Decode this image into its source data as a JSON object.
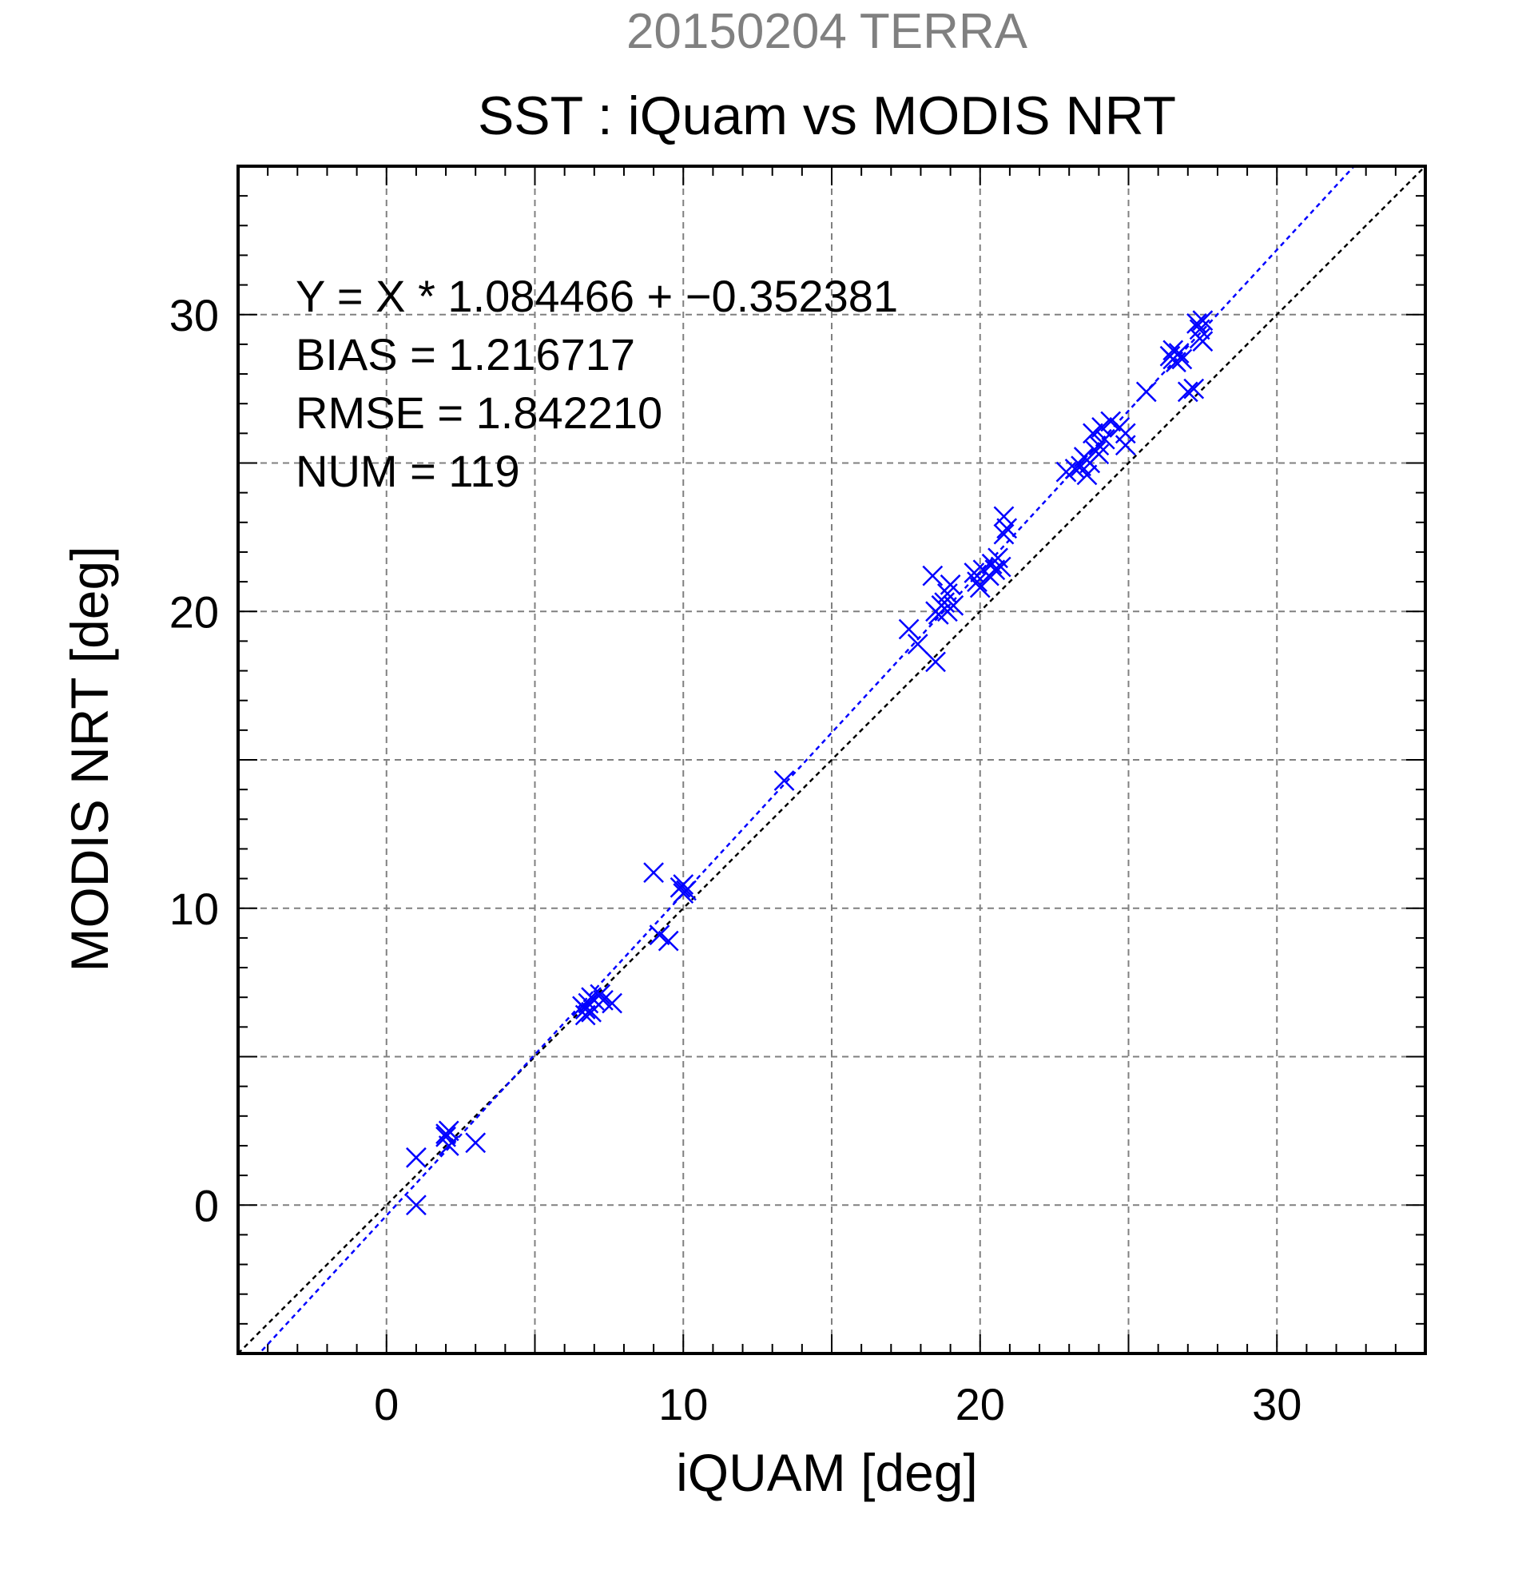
{
  "chart_data": {
    "type": "scatter",
    "title_top": "20150204 TERRA",
    "title": "SST : iQuam vs MODIS NRT",
    "xlabel": "iQUAM [deg]",
    "ylabel": "MODIS NRT [deg]",
    "xlim": [
      -5,
      35
    ],
    "ylim": [
      -5,
      35
    ],
    "xticks": [
      0,
      10,
      20,
      30
    ],
    "yticks": [
      0,
      10,
      20,
      30
    ],
    "grid": true,
    "stats": {
      "fit": "Y = X * 1.084466 + −0.352381",
      "bias": "BIAS = 1.216717",
      "rmse": "RMSE = 1.842210",
      "num": "NUM = 119"
    },
    "fit_line": {
      "slope": 1.084466,
      "intercept": -0.352381,
      "color": "#0000ff"
    },
    "identity_line": {
      "color": "#000000"
    },
    "marker_color": "#0000ff",
    "points": [
      [
        1.0,
        1.6
      ],
      [
        1.0,
        0.0
      ],
      [
        2.0,
        2.4
      ],
      [
        2.1,
        2.5
      ],
      [
        2.0,
        2.3
      ],
      [
        2.1,
        2.0
      ],
      [
        3.0,
        2.1
      ],
      [
        6.6,
        6.7
      ],
      [
        6.7,
        6.6
      ],
      [
        6.8,
        6.8
      ],
      [
        6.9,
        7.0
      ],
      [
        6.7,
        6.4
      ],
      [
        6.9,
        6.5
      ],
      [
        7.0,
        6.9
      ],
      [
        7.2,
        7.1
      ],
      [
        7.3,
        6.9
      ],
      [
        7.6,
        6.8
      ],
      [
        9.0,
        11.2
      ],
      [
        9.2,
        9.1
      ],
      [
        9.5,
        8.9
      ],
      [
        9.9,
        10.7
      ],
      [
        10.0,
        10.5
      ],
      [
        10.0,
        10.8
      ],
      [
        10.1,
        10.6
      ],
      [
        13.4,
        14.3
      ],
      [
        17.6,
        19.4
      ],
      [
        17.9,
        18.9
      ],
      [
        18.5,
        18.3
      ],
      [
        18.4,
        21.2
      ],
      [
        18.5,
        20.0
      ],
      [
        18.7,
        20.2
      ],
      [
        18.6,
        19.9
      ],
      [
        18.8,
        20.3
      ],
      [
        18.9,
        20.6
      ],
      [
        19.0,
        20.9
      ],
      [
        19.1,
        20.2
      ],
      [
        18.9,
        20.0
      ],
      [
        19.8,
        21.3
      ],
      [
        19.9,
        21.0
      ],
      [
        20.0,
        20.8
      ],
      [
        20.1,
        21.4
      ],
      [
        20.3,
        21.2
      ],
      [
        20.4,
        21.6
      ],
      [
        20.6,
        21.8
      ],
      [
        20.5,
        21.4
      ],
      [
        20.7,
        21.5
      ],
      [
        20.8,
        22.6
      ],
      [
        20.9,
        22.8
      ],
      [
        20.8,
        23.2
      ],
      [
        22.9,
        24.7
      ],
      [
        23.2,
        24.8
      ],
      [
        23.4,
        24.9
      ],
      [
        23.5,
        25.2
      ],
      [
        23.7,
        25.0
      ],
      [
        23.6,
        24.6
      ],
      [
        23.9,
        25.4
      ],
      [
        23.8,
        26.0
      ],
      [
        24.0,
        25.6
      ],
      [
        24.1,
        26.2
      ],
      [
        24.2,
        25.8
      ],
      [
        24.0,
        25.3
      ],
      [
        24.4,
        26.4
      ],
      [
        24.7,
        26.2
      ],
      [
        24.9,
        25.6
      ],
      [
        24.9,
        26.0
      ],
      [
        25.6,
        27.4
      ],
      [
        26.4,
        28.6
      ],
      [
        26.5,
        28.8
      ],
      [
        26.6,
        28.4
      ],
      [
        26.7,
        28.7
      ],
      [
        26.8,
        28.5
      ],
      [
        26.5,
        28.5
      ],
      [
        27.0,
        27.4
      ],
      [
        27.2,
        27.5
      ],
      [
        27.3,
        29.7
      ],
      [
        27.4,
        29.5
      ],
      [
        27.5,
        29.8
      ],
      [
        27.4,
        29.2
      ],
      [
        27.5,
        29.1
      ]
    ]
  }
}
